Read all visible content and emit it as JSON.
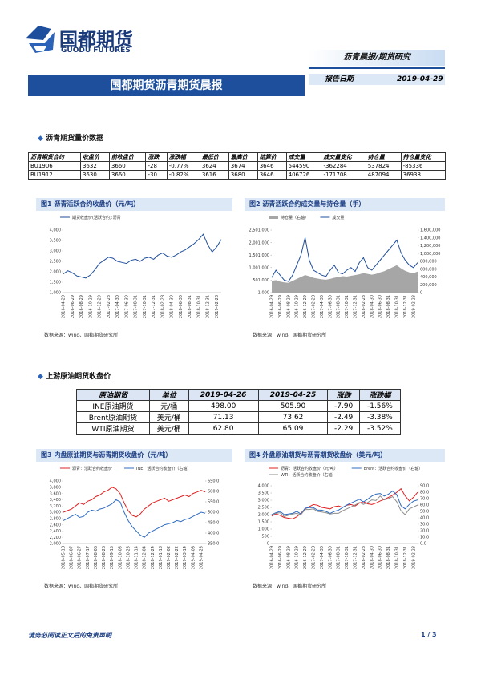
{
  "header": {
    "logo_name": "国都期货",
    "logo_en": "GUODU FUTURES",
    "category": "沥青晨报/期货研究",
    "title": "国都期货沥青期货晨报",
    "date_label": "报告日期",
    "date": "2019-04-29"
  },
  "sections": [
    {
      "heading": "沥青期货量价数据"
    },
    {
      "heading": "上游原油期货收盘价"
    }
  ],
  "table1": {
    "columns": [
      "沥青期货合约",
      "收盘价",
      "前收盘价",
      "涨跌",
      "涨跌幅",
      "最低价",
      "最高价",
      "结算价",
      "成交量",
      "成交量变化",
      "持仓量",
      "持仓量变化"
    ],
    "rows": [
      [
        "BU1906",
        "3632",
        "3660",
        "-28",
        "-0.77%",
        "3624",
        "3674",
        "3646",
        "544590",
        "-362284",
        "537824",
        "-85336"
      ],
      [
        "BU1912",
        "3630",
        "3660",
        "-30",
        "-0.82%",
        "3616",
        "3680",
        "3646",
        "406726",
        "-171708",
        "487094",
        "36938"
      ]
    ]
  },
  "table2": {
    "columns": [
      "原油期货",
      "单位",
      "2019-04-26",
      "2019-04-25",
      "涨跌",
      "涨跌幅"
    ],
    "rows": [
      [
        "INE原油期货",
        "元/桶",
        "498.00",
        "505.90",
        "-7.90",
        "-1.56%"
      ],
      [
        "Brent原油期货",
        "美元/桶",
        "71.13",
        "73.62",
        "-2.49",
        "-3.38%"
      ],
      [
        "WTI原油期货",
        "美元/桶",
        "62.80",
        "65.09",
        "-2.29",
        "-3.52%"
      ]
    ]
  },
  "figures": [
    {
      "title": "图1 沥青活跃合约收盘价（元/吨）",
      "source": "数据来源：wind、国都期货研究所",
      "chart_data": {
        "type": "line",
        "x": [
          "2016-04-29",
          null,
          "2016-06-29",
          null,
          "2016-08-29",
          null,
          "2016-10-29",
          null,
          "2016-12-29",
          null,
          "2017-02-28",
          null,
          "2017-04-30",
          null,
          "2017-06-30",
          null,
          "2017-08-31",
          null,
          "2017-10-31",
          null,
          "2017-12-31",
          null,
          "2018-02-28",
          null,
          "2018-04-30",
          null,
          "2018-06-30",
          null,
          "2018-08-31",
          null,
          "2018-10-31",
          null,
          "2018-12-31",
          null,
          "2019-02-28",
          null
        ],
        "series": [
          {
            "name": "期货收盘价(活跃合约):沥青",
            "color": "#1f4e9c",
            "values": [
              1900,
              2050,
              1950,
              1800,
              1750,
              1700,
              1850,
              2100,
              2400,
              2550,
              2700,
              2650,
              2500,
              2450,
              2400,
              2550,
              2600,
              2500,
              2650,
              2700,
              2600,
              2800,
              2900,
              2750,
              2700,
              2800,
              2950,
              3050,
              3200,
              3350,
              3550,
              3800,
              3300,
              2950,
              3200,
              3550
            ]
          }
        ],
        "ylim": [
          1000,
          4000
        ],
        "yticks": [
          {
            "value": 1000,
            "label": "1,000"
          },
          {
            "value": 1500,
            "label": "1,500"
          },
          {
            "value": 2000,
            "label": "2,000"
          },
          {
            "value": 2500,
            "label": "2,500"
          },
          {
            "value": 3000,
            "label": "3,000"
          },
          {
            "value": 3500,
            "label": "3,500"
          },
          {
            "value": 4000,
            "label": "4,000"
          }
        ]
      }
    },
    {
      "title": "图2 沥青活跃合约成交量与持仓量（手）",
      "source": "数据来源：wind、国都期货研究所",
      "chart_data": {
        "type": "line",
        "x": [
          "2016-04-29",
          null,
          "2016-06-29",
          null,
          "2016-08-29",
          null,
          "2016-10-29",
          null,
          "2016-12-29",
          null,
          "2017-02-28",
          null,
          "2017-04-30",
          null,
          "2017-06-30",
          null,
          "2017-08-31",
          null,
          "2017-10-31",
          null,
          "2017-12-31",
          null,
          "2018-02-28",
          null,
          "2018-04-30",
          null,
          "2018-06-30",
          null,
          "2018-08-31",
          null,
          "2018-10-31",
          null,
          "2018-12-31",
          null,
          "2019-02-28",
          null
        ],
        "series": [
          {
            "name": "持仓量（右轴）",
            "type": "area",
            "axis": "y2",
            "color": "#a6a6a6",
            "values": [
              300000,
              320000,
              280000,
              260000,
              250000,
              300000,
              350000,
              400000,
              450000,
              420000,
              380000,
              360000,
              340000,
              330000,
              350000,
              380000,
              400000,
              420000,
              410000,
              430000,
              450000,
              470000,
              500000,
              480000,
              460000,
              480000,
              520000,
              550000,
              600000,
              650000,
              700000,
              620000,
              560000,
              520000,
              500000,
              540000
            ]
          },
          {
            "name": "成交量",
            "color": "#1f4e9c",
            "values": [
              600000,
              900000,
              700000,
              500000,
              450000,
              700000,
              1100000,
              1500000,
              2200000,
              1300000,
              900000,
              800000,
              700000,
              650000,
              900000,
              1100000,
              800000,
              750000,
              900000,
              1000000,
              850000,
              1200000,
              1400000,
              1000000,
              900000,
              1100000,
              1300000,
              1500000,
              1700000,
              1900000,
              2100000,
              1600000,
              1300000,
              1100000,
              1000000,
              1200000
            ]
          }
        ],
        "ylim": [
          1000,
          2501000
        ],
        "yticks": [
          {
            "value": 1000,
            "label": "1,000"
          },
          {
            "value": 501000,
            "label": "501,000"
          },
          {
            "value": 1001000,
            "label": "1,001,000"
          },
          {
            "value": 1501000,
            "label": "1,501,000"
          },
          {
            "value": 2001000,
            "label": "2,001,000"
          },
          {
            "value": 2501000,
            "label": "2,501,000"
          }
        ],
        "y2lim": [
          0,
          1600000
        ],
        "y2ticks": [
          0,
          {
            "value": 200000,
            "label": "200,000"
          },
          {
            "value": 400000,
            "label": "400,000"
          },
          {
            "value": 600000,
            "label": "600,000"
          },
          {
            "value": 800000,
            "label": "800,000"
          },
          {
            "value": 1000000,
            "label": "1,000,000"
          },
          {
            "value": 1200000,
            "label": "1,200,000"
          },
          {
            "value": 1400000,
            "label": "1,400,000"
          },
          {
            "value": 1600000,
            "label": "1,600,000"
          }
        ]
      }
    },
    {
      "title": "图3 内盘原油期货与沥青期货收盘价（元/吨）",
      "source": "数据来源：wind、国都期货研究所",
      "chart_data": {
        "type": "line",
        "x": [
          "2018-05-18",
          null,
          "2018-06-07",
          null,
          "2018-06-27",
          null,
          "2018-07-17",
          null,
          "2018-08-06",
          null,
          "2018-08-26",
          null,
          "2018-09-15",
          null,
          "2018-10-05",
          null,
          "2018-10-25",
          null,
          "2018-11-14",
          null,
          "2018-12-04",
          null,
          "2018-12-24",
          null,
          "2019-01-13",
          null,
          "2019-02-02",
          null,
          "2019-02-22",
          null,
          "2019-03-14",
          null,
          "2019-04-03",
          null,
          "2019-04-23",
          null
        ],
        "series": [
          {
            "name": "沥青：活跃合约收盘价",
            "color": "#e02020",
            "values": [
              3000,
              3050,
              3100,
              3200,
              3300,
              3250,
              3350,
              3400,
              3500,
              3550,
              3650,
              3700,
              3800,
              3750,
              3600,
              3300,
              3050,
              2900,
              2850,
              2950,
              3100,
              3200,
              3300,
              3350,
              3400,
              3450,
              3350,
              3400,
              3450,
              3500,
              3550,
              3500,
              3600,
              3650,
              3700,
              3650
            ]
          },
          {
            "name": "INE：活跃合约收盘价（右轴）",
            "axis": "y2",
            "color": "#2e6bc0",
            "values": [
              460,
              470,
              480,
              490,
              475,
              480,
              500,
              510,
              505,
              515,
              520,
              530,
              540,
              560,
              550,
              500,
              460,
              430,
              410,
              390,
              380,
              400,
              410,
              420,
              430,
              440,
              445,
              450,
              460,
              455,
              465,
              470,
              480,
              490,
              500,
              495
            ]
          }
        ],
        "ylim": [
          2000,
          4000
        ],
        "yticks": [
          {
            "value": 2000,
            "label": "2,000"
          },
          {
            "value": 2200,
            "label": "2,200"
          },
          {
            "value": 2400,
            "label": "2,400"
          },
          {
            "value": 2600,
            "label": "2,600"
          },
          {
            "value": 2800,
            "label": "2,800"
          },
          {
            "value": 3000,
            "label": "3,000"
          },
          {
            "value": 3200,
            "label": "3,200"
          },
          {
            "value": 3400,
            "label": "3,400"
          },
          {
            "value": 3600,
            "label": "3,600"
          },
          {
            "value": 3800,
            "label": "3,800"
          },
          {
            "value": 4000,
            "label": "4,000"
          }
        ],
        "y2lim": [
          350,
          650
        ],
        "y2ticks": [
          {
            "value": 350,
            "label": "350.0"
          },
          {
            "value": 400,
            "label": "400.0"
          },
          {
            "value": 450,
            "label": "450.0"
          },
          {
            "value": 500,
            "label": "500.0"
          },
          {
            "value": 550,
            "label": "550.0"
          },
          {
            "value": 600,
            "label": "600.0"
          },
          {
            "value": 650,
            "label": "650.0"
          }
        ]
      }
    },
    {
      "title": "图4 外盘原油期货与沥青期货收盘价（美元/吨）",
      "source": "数据来源：wind、国都期货研究所",
      "chart_data": {
        "type": "line",
        "x": [
          "2016-04-29",
          null,
          "2016-06-29",
          null,
          "2016-08-29",
          null,
          "2016-10-29",
          null,
          "2016-12-29",
          null,
          "2017-02-28",
          null,
          "2017-04-30",
          null,
          "2017-06-30",
          null,
          "2017-08-31",
          null,
          "2017-10-31",
          null,
          "2017-12-31",
          null,
          "2018-02-28",
          null,
          "2018-04-30",
          null,
          "2018-06-30",
          null,
          "2018-08-31",
          null,
          "2018-10-31",
          null,
          "2018-12-31",
          null,
          "2019-02-28",
          null
        ],
        "series": [
          {
            "name": "沥青：活跃合约收盘价（元/吨）",
            "color": "#e02020",
            "values": [
              1900,
              2050,
              1950,
              1800,
              1750,
              1700,
              1850,
              2100,
              2400,
              2550,
              2700,
              2650,
              2500,
              2450,
              2400,
              2550,
              2600,
              2500,
              2650,
              2700,
              2600,
              2800,
              2900,
              2750,
              2700,
              2800,
              2950,
              3050,
              3200,
              3350,
              3550,
              3800,
              3300,
              2950,
              3200,
              3550
            ]
          },
          {
            "name": "Brent：活跃合约收盘价（右轴）",
            "axis": "y2",
            "color": "#2e6bc0",
            "values": [
              45,
              48,
              50,
              45,
              46,
              47,
              50,
              46,
              55,
              56,
              56,
              52,
              52,
              50,
              47,
              50,
              52,
              56,
              60,
              63,
              66,
              69,
              65,
              69,
              74,
              77,
              78,
              74,
              77,
              82,
              76,
              59,
              54,
              61,
              66,
              68
            ]
          },
          {
            "name": "WTI：活跃合约收盘价（右轴）",
            "axis": "y2",
            "color": "#8c8c8c",
            "values": [
              44,
              47,
              48,
              42,
              44,
              46,
              47,
              45,
              53,
              53,
              54,
              50,
              49,
              48,
              46,
              47,
              47,
              51,
              54,
              57,
              60,
              64,
              61,
              64,
              68,
              67,
              74,
              68,
              70,
              73,
              65,
              51,
              45,
              54,
              57,
              60
            ]
          }
        ],
        "ylim": [
          0,
          4000
        ],
        "yticks": [
          0,
          500,
          {
            "value": 1000,
            "label": "1,000"
          },
          {
            "value": 1500,
            "label": "1,500"
          },
          {
            "value": 2000,
            "label": "2,000"
          },
          {
            "value": 2500,
            "label": "2,500"
          },
          {
            "value": 3000,
            "label": "3,000"
          },
          {
            "value": 3500,
            "label": "3,500"
          },
          {
            "value": 4000,
            "label": "4,000"
          }
        ],
        "y2lim": [
          0,
          90
        ],
        "y2ticks": [
          {
            "value": 0,
            "label": "0.0"
          },
          {
            "value": 10,
            "label": "10.0"
          },
          {
            "value": 20,
            "label": "20.0"
          },
          {
            "value": 30,
            "label": "30.0"
          },
          {
            "value": 40,
            "label": "40.0"
          },
          {
            "value": 50,
            "label": "50.0"
          },
          {
            "value": 60,
            "label": "60.0"
          },
          {
            "value": 70,
            "label": "70.0"
          },
          {
            "value": 80,
            "label": "80.0"
          },
          {
            "value": 90,
            "label": "90.0"
          }
        ]
      }
    }
  ],
  "footer": {
    "disclaimer": "请务必阅读正文后的免责声明",
    "page": "1 / 3"
  }
}
